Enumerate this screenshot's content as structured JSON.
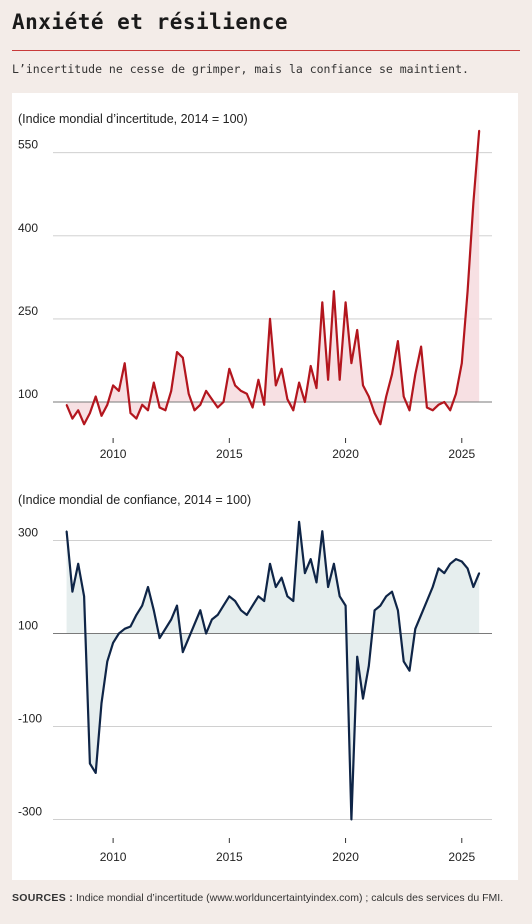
{
  "header": {
    "title": "Anxiété et résilience",
    "subtitle": "L’incertitude ne cesse de grimper, mais la confiance se maintient."
  },
  "footer": {
    "sources_label": "SOURCES :",
    "sources_text": "Indice mondial d’incertitude (www.worlduncertaintyindex.com) ; calculs des services du FMI."
  },
  "colors": {
    "uncertainty_line": "#b3161e",
    "uncertainty_fill": "#f6dde0",
    "confidence_line": "#0f2547",
    "confidence_fill": "#e3ecec",
    "grid": "#c9c9c9",
    "baseline": "#7a7a7a",
    "rule": "#c83a3a"
  },
  "chart_data": [
    {
      "type": "area",
      "title": "(Indice mondial d’incertitude, 2014 = 100)",
      "baseline": 100,
      "ylim": [
        35,
        600
      ],
      "yticks": [
        100,
        250,
        400,
        550
      ],
      "xlim": [
        2007.5,
        2026.3
      ],
      "xticks": [
        2010,
        2015,
        2020,
        2025
      ],
      "x": [
        2008.0,
        2008.25,
        2008.5,
        2008.75,
        2009.0,
        2009.25,
        2009.5,
        2009.75,
        2010.0,
        2010.25,
        2010.5,
        2010.75,
        2011.0,
        2011.25,
        2011.5,
        2011.75,
        2012.0,
        2012.25,
        2012.5,
        2012.75,
        2013.0,
        2013.25,
        2013.5,
        2013.75,
        2014.0,
        2014.25,
        2014.5,
        2014.75,
        2015.0,
        2015.25,
        2015.5,
        2015.75,
        2016.0,
        2016.25,
        2016.5,
        2016.75,
        2017.0,
        2017.25,
        2017.5,
        2017.75,
        2018.0,
        2018.25,
        2018.5,
        2018.75,
        2019.0,
        2019.25,
        2019.5,
        2019.75,
        2020.0,
        2020.25,
        2020.5,
        2020.75,
        2021.0,
        2021.25,
        2021.5,
        2021.75,
        2022.0,
        2022.25,
        2022.5,
        2022.75,
        2023.0,
        2023.25,
        2023.5,
        2023.75,
        2024.0,
        2024.25,
        2024.5,
        2024.75,
        2025.0,
        2025.25,
        2025.5,
        2025.75
      ],
      "values": [
        95,
        70,
        85,
        60,
        80,
        110,
        75,
        95,
        130,
        120,
        170,
        80,
        70,
        95,
        85,
        135,
        90,
        85,
        120,
        190,
        180,
        115,
        85,
        95,
        120,
        105,
        90,
        100,
        160,
        130,
        120,
        115,
        90,
        140,
        95,
        250,
        130,
        160,
        105,
        85,
        135,
        100,
        165,
        125,
        280,
        140,
        300,
        140,
        280,
        170,
        230,
        130,
        110,
        80,
        60,
        110,
        150,
        210,
        110,
        85,
        150,
        200,
        90,
        85,
        95,
        100,
        85,
        115,
        170,
        300,
        460,
        590
      ]
    },
    {
      "type": "area",
      "title": "(Indice mondial de confiance, 2014 = 100)",
      "baseline": 100,
      "ylim": [
        -340,
        370
      ],
      "yticks": [
        -300,
        -100,
        100,
        300
      ],
      "xlim": [
        2007.5,
        2026.3
      ],
      "xticks": [
        2010,
        2015,
        2020,
        2025
      ],
      "x": [
        2008.0,
        2008.25,
        2008.5,
        2008.75,
        2009.0,
        2009.25,
        2009.5,
        2009.75,
        2010.0,
        2010.25,
        2010.5,
        2010.75,
        2011.0,
        2011.25,
        2011.5,
        2011.75,
        2012.0,
        2012.25,
        2012.5,
        2012.75,
        2013.0,
        2013.25,
        2013.5,
        2013.75,
        2014.0,
        2014.25,
        2014.5,
        2014.75,
        2015.0,
        2015.25,
        2015.5,
        2015.75,
        2016.0,
        2016.25,
        2016.5,
        2016.75,
        2017.0,
        2017.25,
        2017.5,
        2017.75,
        2018.0,
        2018.25,
        2018.5,
        2018.75,
        2019.0,
        2019.25,
        2019.5,
        2019.75,
        2020.0,
        2020.25,
        2020.5,
        2020.75,
        2021.0,
        2021.25,
        2021.5,
        2021.75,
        2022.0,
        2022.25,
        2022.5,
        2022.75,
        2023.0,
        2023.25,
        2023.5,
        2023.75,
        2024.0,
        2024.25,
        2024.5,
        2024.75,
        2025.0,
        2025.25,
        2025.5,
        2025.75
      ],
      "values": [
        320,
        190,
        250,
        180,
        -180,
        -200,
        -50,
        40,
        80,
        100,
        110,
        115,
        140,
        160,
        200,
        150,
        90,
        110,
        130,
        160,
        60,
        90,
        120,
        150,
        100,
        130,
        140,
        160,
        180,
        170,
        150,
        140,
        160,
        180,
        170,
        250,
        200,
        220,
        180,
        170,
        340,
        230,
        260,
        210,
        320,
        200,
        250,
        180,
        160,
        -300,
        50,
        -40,
        30,
        150,
        160,
        180,
        190,
        150,
        40,
        20,
        110,
        140,
        170,
        200,
        240,
        230,
        250,
        260,
        255,
        240,
        200,
        230
      ]
    }
  ]
}
